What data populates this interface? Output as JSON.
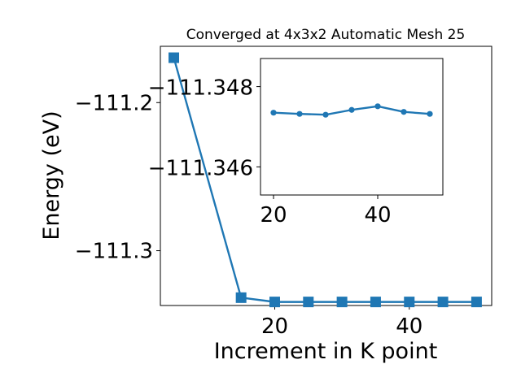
{
  "chart_data": [
    {
      "type": "line",
      "title": "Converged at 4x3x2 Automatic Mesh 25",
      "xlabel": "Increment in K point",
      "ylabel": "Energy (eV)",
      "xlim": [
        3.0,
        52.25
      ],
      "ylim": [
        -111.337,
        -111.162
      ],
      "xticks": [
        20,
        40
      ],
      "xtick_labels": [
        "20",
        "40"
      ],
      "yticks": [
        -111.2,
        -111.3
      ],
      "ytick_labels": [
        "−111.2",
        "−111.3"
      ],
      "grid": false,
      "legend": "none",
      "series": [
        {
          "marker": "square",
          "color": "#1f77b4",
          "x": [
            5,
            15,
            20,
            25,
            30,
            35,
            40,
            45,
            50
          ],
          "y": [
            -111.1697,
            -111.3317,
            -111.3346,
            -111.3346,
            -111.3346,
            -111.3346,
            -111.3346,
            -111.3346,
            -111.3346
          ]
        }
      ]
    },
    {
      "type": "line",
      "inset": true,
      "title": "",
      "xlabel": "",
      "ylabel": "",
      "xlim": [
        17.5,
        52.5
      ],
      "ylim": [
        -111.3453,
        -111.3487
      ],
      "xticks": [
        20,
        40
      ],
      "xtick_labels": [
        "20",
        "40"
      ],
      "yticks": [
        -111.348,
        -111.346
      ],
      "ytick_labels": [
        "−111.348",
        "−111.346"
      ],
      "grid": false,
      "legend": "none",
      "series": [
        {
          "marker": "circle",
          "color": "#1f77b4",
          "x": [
            20,
            25,
            30,
            35,
            40,
            45,
            50
          ],
          "y": [
            -111.34735,
            -111.34732,
            -111.3473,
            -111.34742,
            -111.34751,
            -111.34737,
            -111.34732
          ]
        }
      ]
    }
  ]
}
